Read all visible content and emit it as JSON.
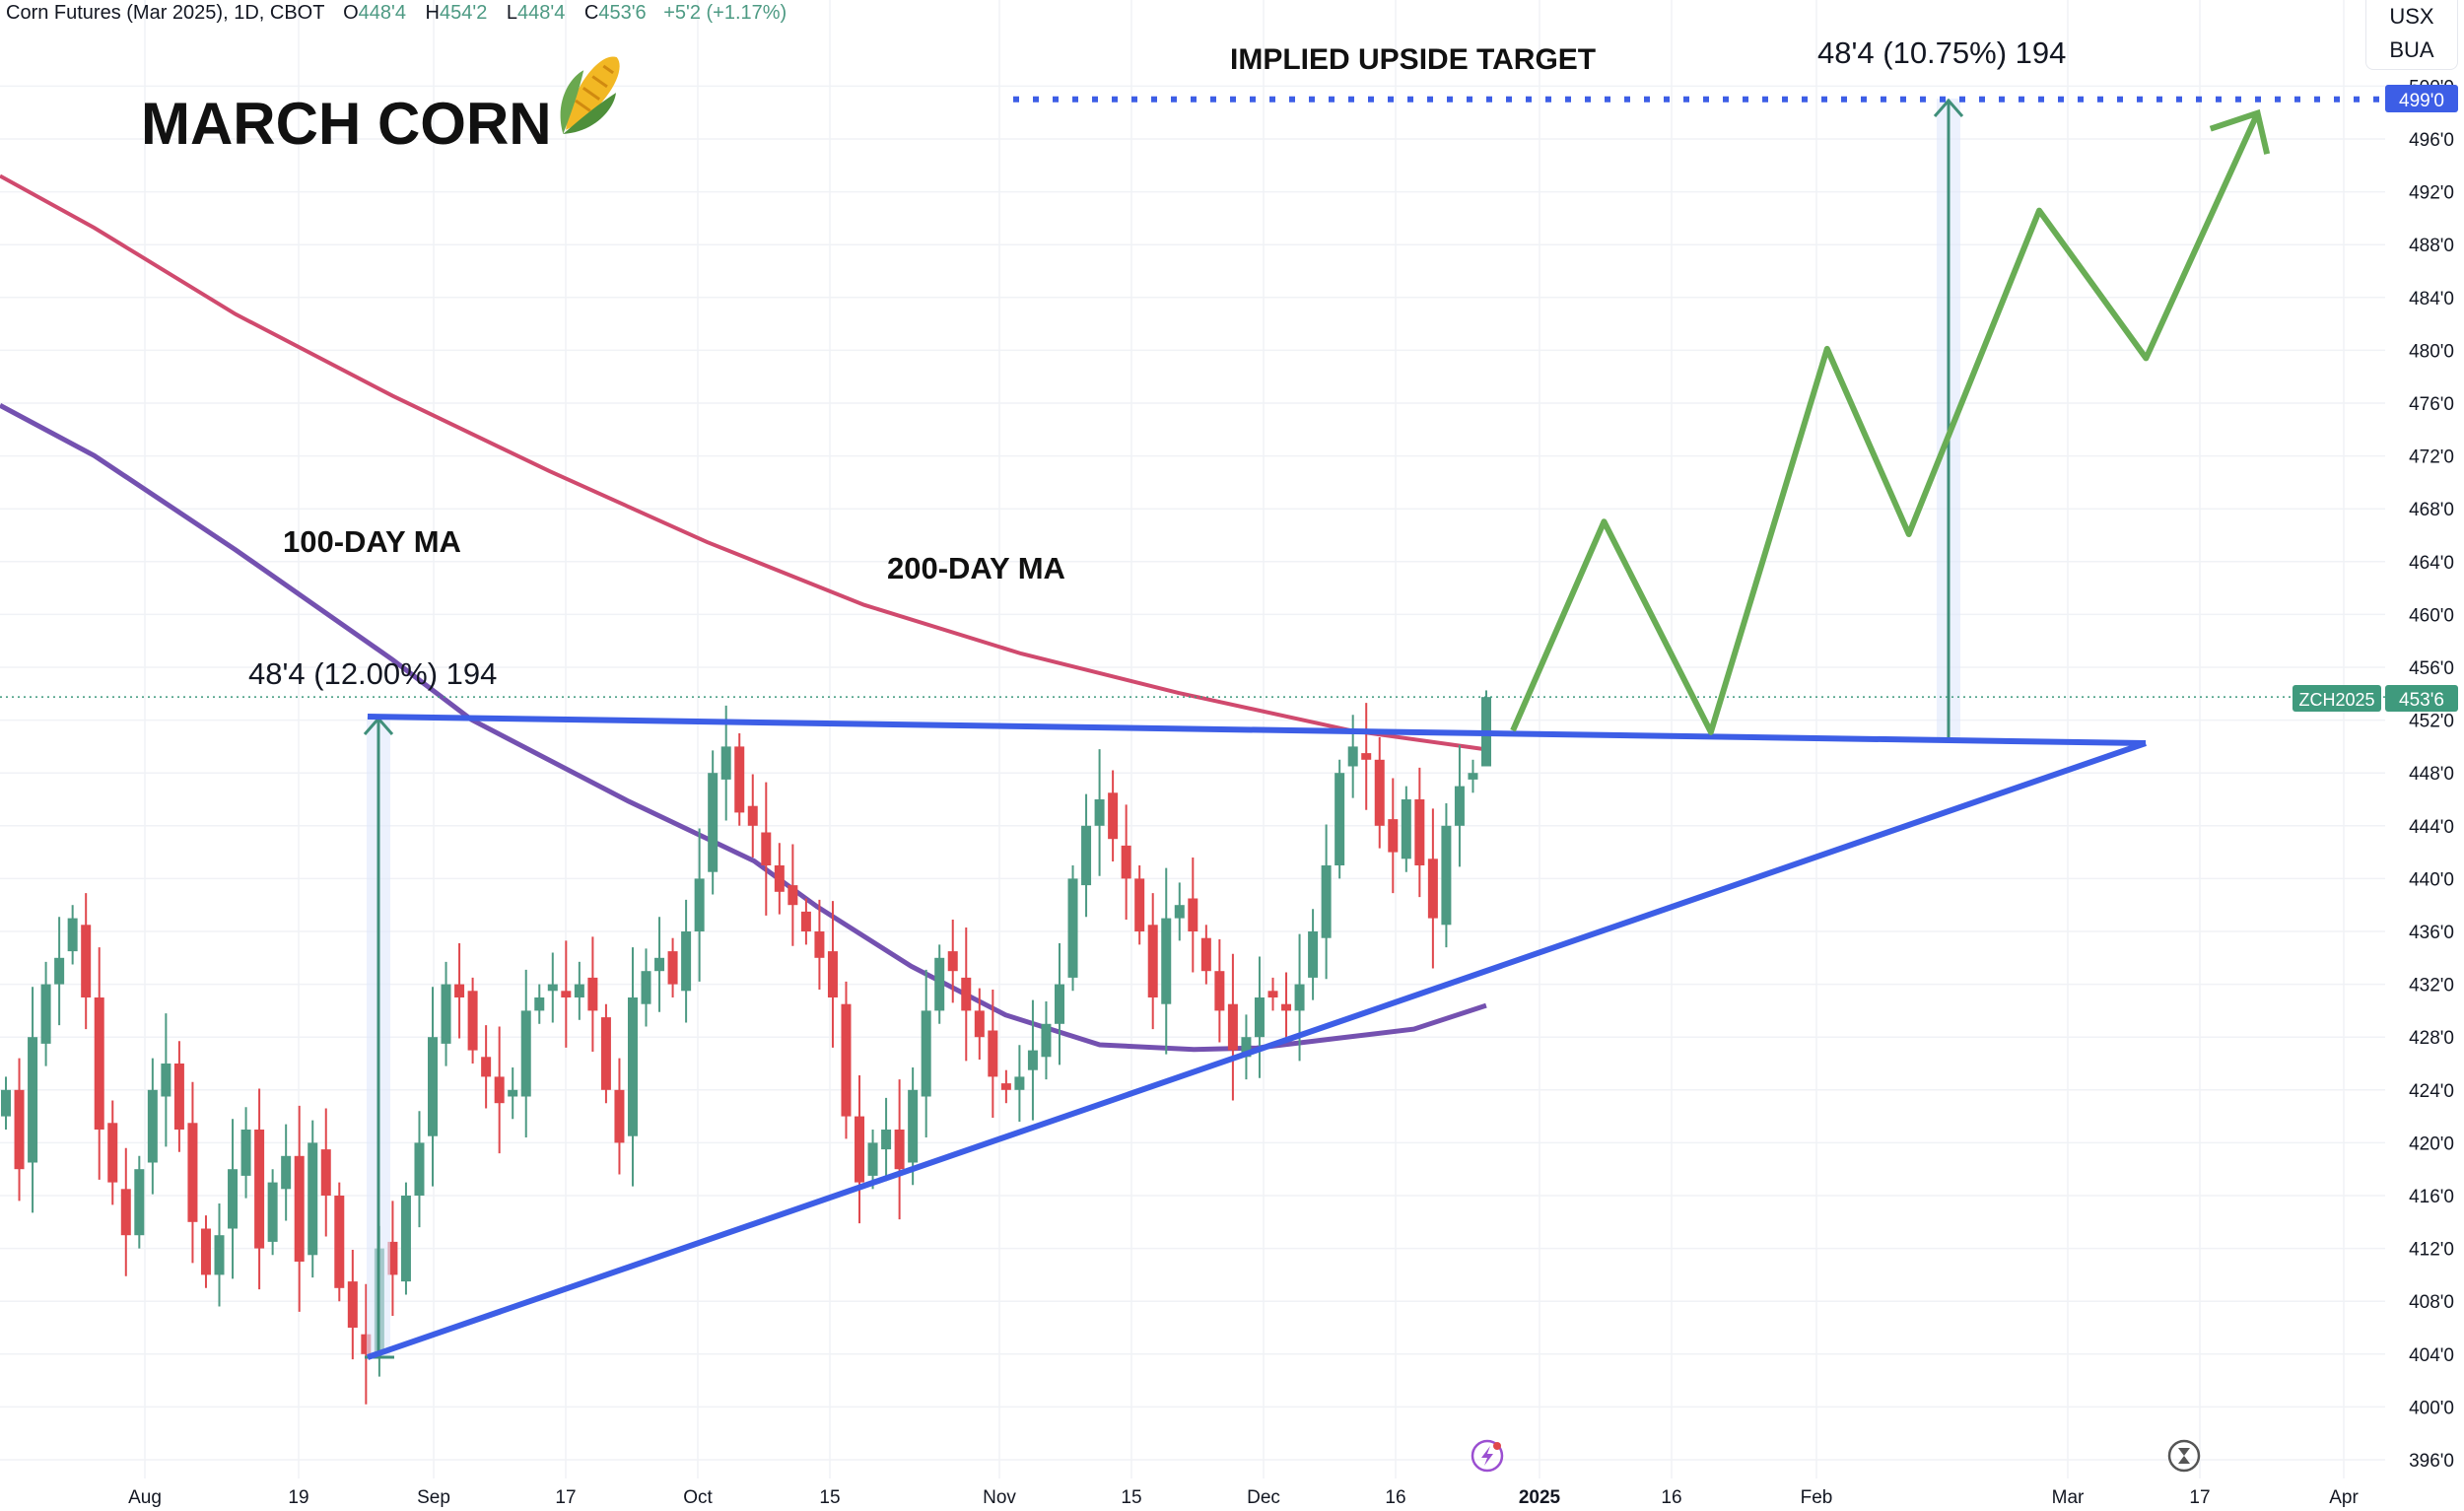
{
  "header": {
    "symbol_title": "Corn Futures (Mar 2025), 1D, CBOT",
    "open_label": "O",
    "open": "448'4",
    "high_label": "H",
    "high": "454'2",
    "low_label": "L",
    "low": "448'4",
    "close_label": "C",
    "close": "453'6",
    "change": "+5'2 (+1.17%)"
  },
  "unit_box": {
    "line1": "USX",
    "line2": "BUA"
  },
  "annotations": {
    "title": "MARCH CORN",
    "implied_target": "IMPLIED UPSIDE TARGET",
    "target_measure": "48'4 (10.75%) 194",
    "ma100_label": "100-DAY MA",
    "ma200_label": "200-DAY MA",
    "base_measure": "48'4 (12.00%) 194"
  },
  "price_axis": {
    "ticks": [
      "500'0",
      "496'0",
      "492'0",
      "488'0",
      "484'0",
      "480'0",
      "476'0",
      "472'0",
      "468'0",
      "464'0",
      "460'0",
      "456'0",
      "452'0",
      "448'0",
      "444'0",
      "440'0",
      "436'0",
      "432'0",
      "428'0",
      "424'0",
      "420'0",
      "416'0",
      "412'0",
      "408'0",
      "404'0",
      "400'0",
      "396'0"
    ],
    "tick_values": [
      500,
      496,
      492,
      488,
      484,
      480,
      476,
      472,
      468,
      464,
      460,
      456,
      452,
      448,
      444,
      440,
      436,
      432,
      428,
      424,
      420,
      416,
      412,
      408,
      404,
      400,
      396
    ],
    "target_label": "499'0",
    "target_value": 499,
    "last_symbol": "ZCH2025",
    "last_price": "453'6",
    "last_value": 453.75
  },
  "time_axis": {
    "labels": [
      "Aug",
      "19",
      "Sep",
      "17",
      "Oct",
      "15",
      "Nov",
      "15",
      "Dec",
      "16",
      "2025",
      "16",
      "Feb",
      "Mar",
      "17",
      "Apr"
    ]
  },
  "colors": {
    "up": "#4d9a83",
    "down": "#e0474c",
    "trendline": "#3d5ee6",
    "ma100": "#7451b0",
    "ma200": "#d04a6e",
    "projection": "#69ad55",
    "target_line": "#3d5ee6"
  },
  "chart_data": {
    "type": "candlestick",
    "closes": [
      424,
      418,
      428,
      432,
      434,
      437,
      431,
      421,
      417,
      413,
      418,
      424,
      426,
      421,
      414,
      410,
      413,
      418,
      421,
      412,
      417,
      419,
      411,
      420,
      416,
      409,
      406,
      404,
      412,
      410,
      416,
      420,
      428,
      432,
      431,
      427,
      425,
      423,
      424,
      430,
      431,
      432,
      431,
      432,
      430,
      424,
      420,
      431,
      433,
      434,
      432,
      436,
      440,
      448,
      450,
      445,
      444,
      441,
      439,
      438,
      436,
      434,
      431,
      422,
      417,
      420,
      421,
      418,
      424,
      430,
      434,
      433,
      430,
      428,
      425,
      424,
      425,
      427,
      429,
      432,
      440,
      444,
      446,
      443,
      440,
      436,
      431,
      437,
      438,
      436,
      433,
      430,
      427,
      428,
      431,
      431,
      430,
      432,
      436,
      441,
      448,
      450,
      449,
      444,
      442,
      446,
      441,
      437,
      444,
      447,
      448,
      453.75
    ],
    "last_ohlc": [
      448.5,
      454.25,
      448.5,
      453.75
    ],
    "resistance": 452.2,
    "support_from": 404,
    "support_to": 450,
    "target": 499,
    "ylim": [
      394,
      503
    ]
  }
}
